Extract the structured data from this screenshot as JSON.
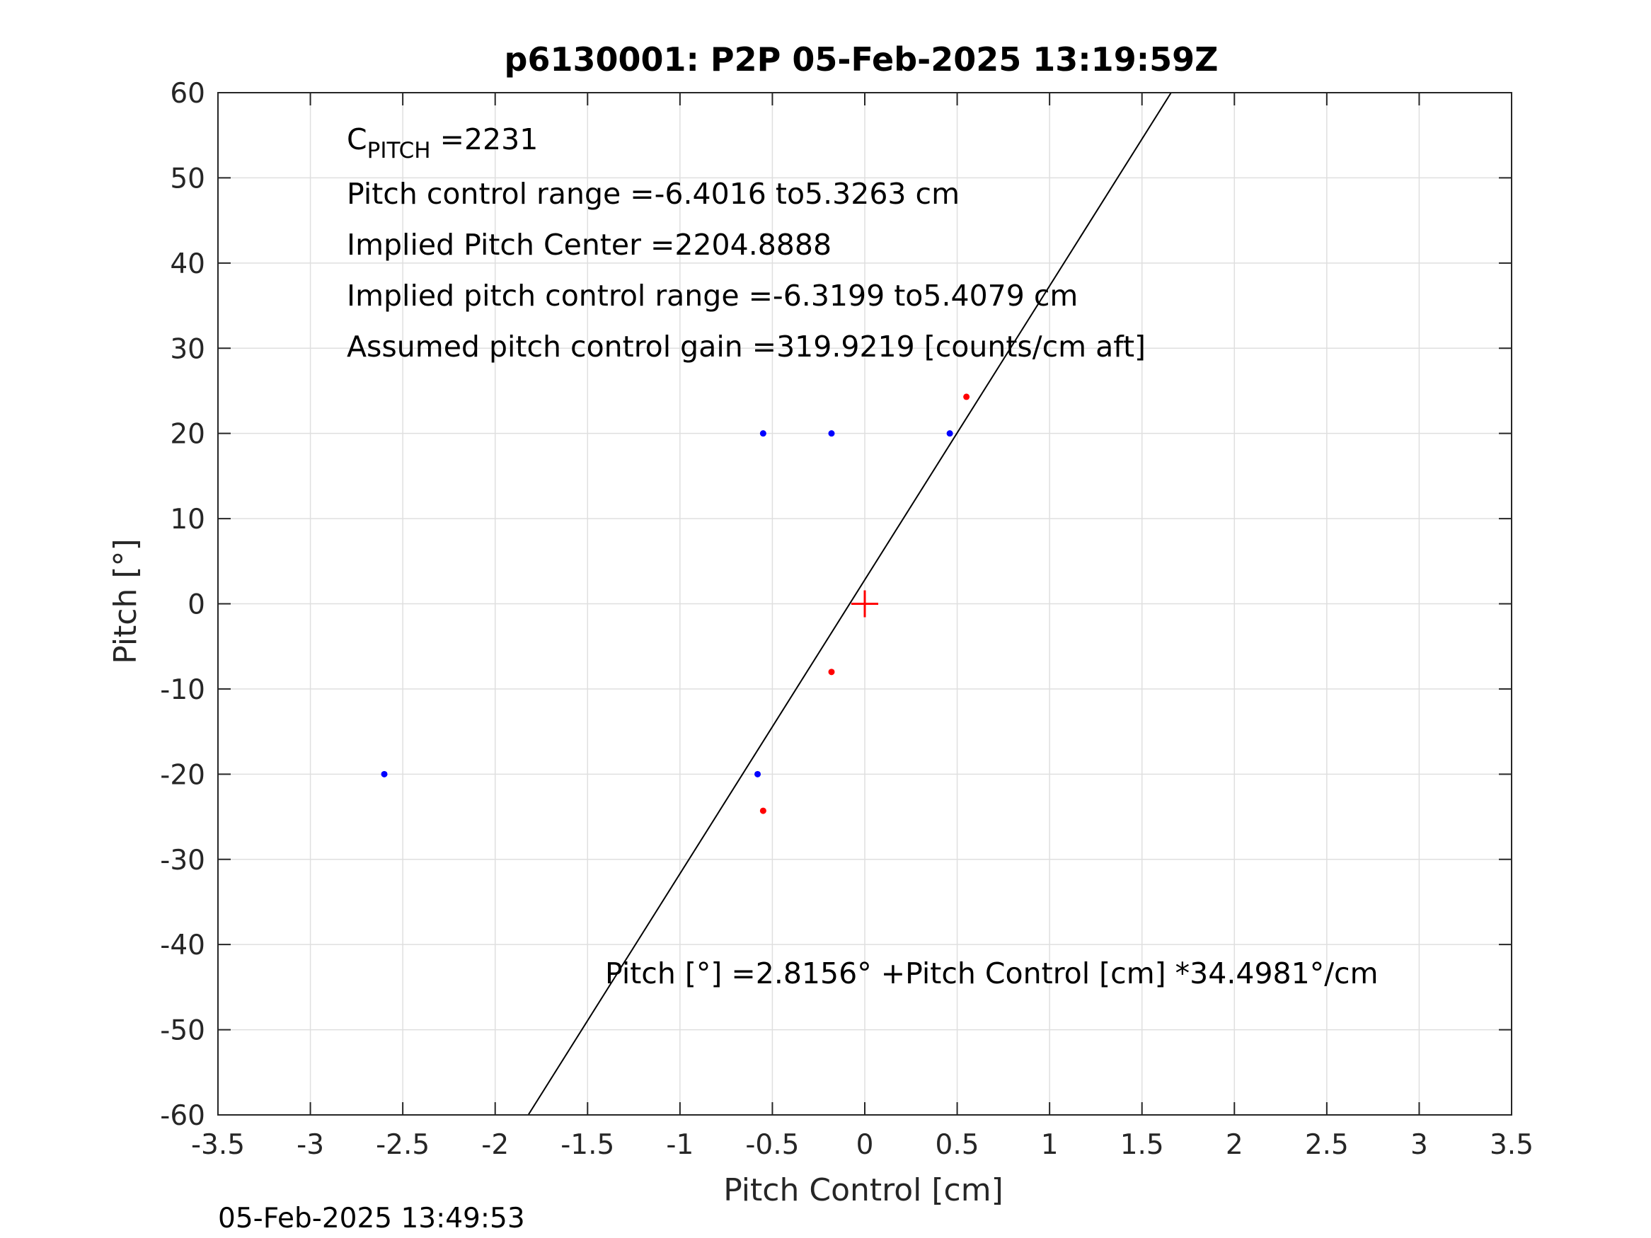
{
  "chart_data": {
    "type": "scatter",
    "title": "p6130001: P2P 05-Feb-2025 13:19:59Z",
    "xlabel": "Pitch Control [cm]",
    "ylabel": "Pitch [°]",
    "xlim": [
      -3.5,
      3.5
    ],
    "ylim": [
      -60,
      60
    ],
    "xticks": [
      -3.5,
      -3,
      -2.5,
      -2,
      -1.5,
      -1,
      -0.5,
      0,
      0.5,
      1,
      1.5,
      2,
      2.5,
      3,
      3.5
    ],
    "xtick_labels": [
      "-3.5",
      "-3",
      "-2.5",
      "-2",
      "-1.5",
      "-1",
      "-0.5",
      "0",
      "0.5",
      "1",
      "1.5",
      "2",
      "2.5",
      "3",
      "3.5"
    ],
    "yticks": [
      -60,
      -50,
      -40,
      -30,
      -20,
      -10,
      0,
      10,
      20,
      30,
      40,
      50,
      60
    ],
    "ytick_labels": [
      "-60",
      "-50",
      "-40",
      "-30",
      "-20",
      "-10",
      "0",
      "10",
      "20",
      "30",
      "40",
      "50",
      "60"
    ],
    "grid": true,
    "series": [
      {
        "color": "#0000ff",
        "marker": "dot",
        "points": [
          [
            -0.55,
            20
          ],
          [
            -0.18,
            20
          ],
          [
            0.46,
            20
          ],
          [
            -2.6,
            -20
          ],
          [
            -0.58,
            -20
          ]
        ]
      },
      {
        "color": "#ff0000",
        "marker": "dot",
        "points": [
          [
            0.55,
            24.3
          ],
          [
            -0.18,
            -8
          ],
          [
            -0.55,
            -24.3
          ]
        ]
      },
      {
        "color": "#000000",
        "type": "line",
        "intercept": 2.8156,
        "slope": 34.4981
      },
      {
        "color": "#ff0000",
        "marker": "plus",
        "points": [
          [
            0,
            0
          ]
        ]
      }
    ],
    "annotations": {
      "c_pitch_main": "C",
      "c_pitch_sub": "PITCH",
      "c_pitch_value": " =2231",
      "line2": "Pitch control range =-6.4016 to5.3263 cm",
      "line3": "Implied Pitch Center =2204.8888",
      "line4": "Implied pitch control range =-6.3199 to5.4079 cm",
      "line5": "Assumed pitch control gain =319.9219 [counts/cm aft]",
      "equation": "Pitch [°] =2.8156° +Pitch Control [cm] *34.4981°/cm"
    },
    "timestamp": "05-Feb-2025 13:49:53"
  }
}
